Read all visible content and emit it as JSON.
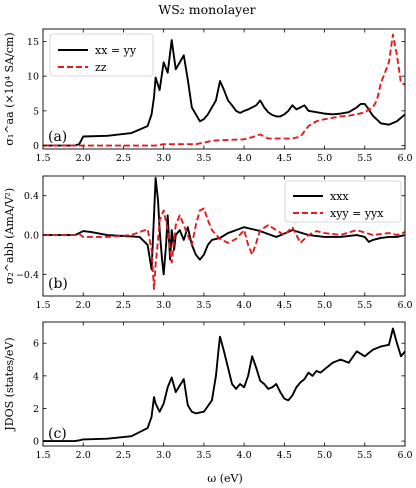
{
  "title": "WS₂ monolayer",
  "xlabel": "ω (eV)",
  "colors": {
    "solid": "#000000",
    "dashed": "#e41a1c",
    "axis": "#000000"
  },
  "chart_data": [
    {
      "type": "line",
      "panel_label": "(a)",
      "ylabel": "σ₁^aa (×10⁴ SA/cm)",
      "xlim": [
        1.5,
        6.0
      ],
      "ylim": [
        -0.5,
        16.8
      ],
      "xticks": [
        1.5,
        2.0,
        2.5,
        3.0,
        3.5,
        4.0,
        4.5,
        5.0,
        5.5,
        6.0
      ],
      "xtick_labels": [
        "1.5",
        "2.0",
        "2.5",
        "3.0",
        "3.5",
        "4.0",
        "4.5",
        "5.0",
        "5.5",
        "6.0"
      ],
      "yticks": [
        0,
        5,
        10,
        15
      ],
      "ytick_labels": [
        "0",
        "5",
        "10",
        "15"
      ],
      "legend_position": "top-left",
      "series": [
        {
          "name": "xx = yy",
          "style": "solid",
          "x": [
            1.5,
            1.9,
            1.95,
            2.0,
            2.3,
            2.6,
            2.8,
            2.85,
            2.88,
            2.9,
            2.95,
            3.0,
            3.05,
            3.1,
            3.15,
            3.2,
            3.25,
            3.3,
            3.35,
            3.4,
            3.45,
            3.5,
            3.55,
            3.6,
            3.65,
            3.7,
            3.75,
            3.8,
            3.85,
            3.9,
            3.95,
            4.0,
            4.05,
            4.1,
            4.15,
            4.2,
            4.25,
            4.3,
            4.35,
            4.4,
            4.45,
            4.5,
            4.55,
            4.6,
            4.65,
            4.7,
            4.75,
            4.8,
            4.9,
            5.0,
            5.1,
            5.2,
            5.3,
            5.4,
            5.45,
            5.5,
            5.55,
            5.6,
            5.7,
            5.8,
            5.9,
            6.0
          ],
          "y": [
            0,
            0,
            0.2,
            1.3,
            1.4,
            1.8,
            2.8,
            4.5,
            7.0,
            9.8,
            8.0,
            12.0,
            10.5,
            15.2,
            11.0,
            12.0,
            13.0,
            9.5,
            5.5,
            4.5,
            3.5,
            3.8,
            4.5,
            5.5,
            6.5,
            9.3,
            8.0,
            6.5,
            5.8,
            5.0,
            4.7,
            5.0,
            5.2,
            5.5,
            5.8,
            6.5,
            5.5,
            4.8,
            4.4,
            4.2,
            4.2,
            4.5,
            5.0,
            5.8,
            5.2,
            5.5,
            5.8,
            5.0,
            4.8,
            4.6,
            4.5,
            4.6,
            4.8,
            5.5,
            6.0,
            6.0,
            5.2,
            4.3,
            3.2,
            3.0,
            3.5,
            4.5
          ]
        },
        {
          "name": "zz",
          "style": "dashed",
          "x": [
            1.5,
            2.0,
            2.5,
            2.9,
            3.0,
            3.4,
            3.5,
            3.6,
            4.0,
            4.1,
            4.2,
            4.3,
            4.6,
            4.7,
            4.8,
            4.9,
            5.0,
            5.1,
            5.2,
            5.3,
            5.4,
            5.5,
            5.6,
            5.65,
            5.7,
            5.75,
            5.8,
            5.85,
            5.9,
            5.95,
            6.0
          ],
          "y": [
            0,
            0,
            0,
            0,
            0.2,
            0.2,
            0.4,
            0.7,
            0.9,
            1.2,
            1.6,
            1.0,
            1.0,
            1.3,
            2.8,
            3.5,
            3.8,
            4.0,
            4.2,
            4.3,
            4.5,
            4.8,
            5.5,
            6.5,
            9.0,
            10.5,
            12.0,
            16.0,
            13.0,
            9.0,
            8.8
          ]
        }
      ]
    },
    {
      "type": "line",
      "panel_label": "(b)",
      "ylabel": "σ₂^abb (AmA/V²)",
      "xlim": [
        1.5,
        6.0
      ],
      "ylim": [
        -0.62,
        0.6
      ],
      "xticks": [
        1.5,
        2.0,
        2.5,
        3.0,
        3.5,
        4.0,
        4.5,
        5.0,
        5.5,
        6.0
      ],
      "xtick_labels": [
        "1.5",
        "2.0",
        "2.5",
        "3.0",
        "3.5",
        "4.0",
        "4.5",
        "5.0",
        "5.5",
        "6.0"
      ],
      "yticks": [
        -0.4,
        0.0,
        0.4
      ],
      "ytick_labels": [
        "−0.4",
        "0.0",
        "0.4"
      ],
      "legend_position": "top-right",
      "series": [
        {
          "name": "xxx",
          "style": "solid",
          "x": [
            1.5,
            1.9,
            1.95,
            2.0,
            2.1,
            2.3,
            2.5,
            2.7,
            2.8,
            2.85,
            2.88,
            2.9,
            2.93,
            2.95,
            2.98,
            3.0,
            3.03,
            3.05,
            3.08,
            3.1,
            3.13,
            3.15,
            3.2,
            3.25,
            3.3,
            3.35,
            3.4,
            3.45,
            3.5,
            3.55,
            3.6,
            3.7,
            3.8,
            3.9,
            4.0,
            4.2,
            4.4,
            4.6,
            4.8,
            5.0,
            5.2,
            5.4,
            5.5,
            5.55,
            5.6,
            5.7,
            5.8,
            5.9,
            6.0
          ],
          "y": [
            0,
            0,
            0.02,
            0.04,
            0.03,
            0.0,
            -0.01,
            -0.02,
            -0.1,
            -0.35,
            0.2,
            0.58,
            0.35,
            0.05,
            -0.25,
            -0.4,
            -0.1,
            0.2,
            -0.25,
            0.05,
            -0.15,
            0.0,
            0.05,
            -0.05,
            0.08,
            -0.1,
            -0.2,
            -0.25,
            -0.2,
            -0.1,
            -0.05,
            -0.03,
            0.02,
            0.05,
            0.08,
            0.04,
            -0.02,
            0.05,
            0.0,
            -0.02,
            -0.02,
            0.0,
            -0.02,
            -0.07,
            -0.05,
            -0.03,
            -0.02,
            -0.02,
            0.0
          ]
        },
        {
          "name": "xyy = yyx",
          "style": "dashed",
          "x": [
            1.5,
            1.9,
            1.95,
            2.0,
            2.3,
            2.6,
            2.7,
            2.8,
            2.85,
            2.88,
            2.9,
            2.93,
            2.95,
            3.0,
            3.05,
            3.1,
            3.15,
            3.2,
            3.25,
            3.3,
            3.35,
            3.4,
            3.45,
            3.5,
            3.55,
            3.6,
            3.7,
            3.8,
            3.9,
            4.0,
            4.05,
            4.1,
            4.15,
            4.2,
            4.3,
            4.5,
            4.6,
            4.7,
            4.8,
            4.9,
            5.0,
            5.2,
            5.4,
            5.6,
            5.8,
            5.9,
            6.0
          ],
          "y": [
            0,
            0,
            0.01,
            -0.02,
            -0.02,
            0.0,
            0.03,
            0.06,
            -0.15,
            -0.55,
            -0.3,
            -0.05,
            0.15,
            0.25,
            0.05,
            -0.28,
            0.1,
            0.2,
            0.1,
            0.0,
            -0.1,
            0.1,
            0.25,
            0.27,
            0.15,
            0.05,
            -0.04,
            -0.08,
            -0.04,
            0.05,
            -0.1,
            -0.2,
            -0.08,
            0.05,
            0.1,
            0.0,
            0.08,
            -0.08,
            0.0,
            0.04,
            0.02,
            0.0,
            0.05,
            0.0,
            0.02,
            0.0,
            0.03
          ]
        }
      ]
    },
    {
      "type": "line",
      "panel_label": "(c)",
      "ylabel": "JDOS (states/eV)",
      "xlim": [
        1.5,
        6.0
      ],
      "ylim": [
        -0.3,
        7.3
      ],
      "xticks": [
        1.5,
        2.0,
        2.5,
        3.0,
        3.5,
        4.0,
        4.5,
        5.0,
        5.5,
        6.0
      ],
      "xtick_labels": [
        "1.5",
        "2.0",
        "2.5",
        "3.0",
        "3.5",
        "4.0",
        "4.5",
        "5.0",
        "5.5",
        "6.0"
      ],
      "yticks": [
        0,
        2,
        4,
        6
      ],
      "ytick_labels": [
        "0",
        "2",
        "4",
        "6"
      ],
      "series": [
        {
          "name": "",
          "style": "solid",
          "x": [
            1.5,
            1.9,
            1.95,
            2.0,
            2.3,
            2.6,
            2.8,
            2.85,
            2.88,
            2.9,
            2.95,
            3.0,
            3.05,
            3.1,
            3.15,
            3.2,
            3.25,
            3.3,
            3.35,
            3.4,
            3.5,
            3.6,
            3.65,
            3.68,
            3.7,
            3.75,
            3.8,
            3.85,
            3.9,
            3.95,
            4.0,
            4.05,
            4.1,
            4.15,
            4.2,
            4.25,
            4.3,
            4.35,
            4.4,
            4.45,
            4.5,
            4.55,
            4.6,
            4.65,
            4.7,
            4.75,
            4.8,
            4.85,
            4.9,
            4.95,
            5.0,
            5.1,
            5.2,
            5.3,
            5.4,
            5.5,
            5.6,
            5.7,
            5.8,
            5.85,
            5.9,
            5.95,
            6.0
          ],
          "y": [
            0,
            0,
            0.05,
            0.1,
            0.15,
            0.3,
            0.8,
            1.5,
            2.7,
            2.3,
            1.8,
            2.3,
            3.3,
            3.9,
            3.0,
            3.4,
            3.8,
            2.2,
            1.8,
            1.7,
            1.8,
            2.5,
            4.0,
            5.5,
            6.4,
            5.5,
            4.5,
            3.5,
            3.2,
            3.5,
            3.3,
            4.0,
            5.2,
            4.5,
            3.7,
            3.5,
            3.2,
            3.3,
            3.5,
            3.0,
            2.6,
            2.5,
            2.8,
            3.3,
            3.6,
            3.8,
            4.2,
            4.0,
            4.3,
            4.2,
            4.4,
            4.8,
            5.0,
            4.8,
            5.5,
            5.2,
            5.6,
            5.8,
            5.9,
            6.9,
            6.0,
            5.2,
            5.5
          ]
        }
      ]
    }
  ]
}
